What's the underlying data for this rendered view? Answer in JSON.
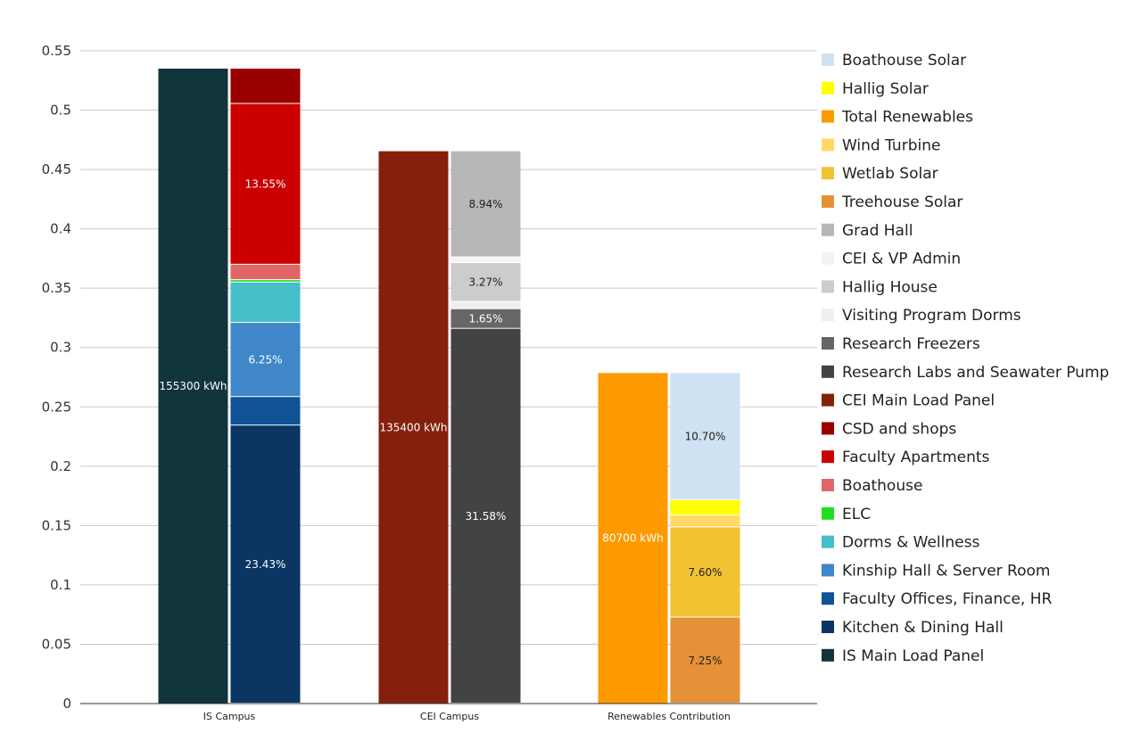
{
  "chart_data": {
    "type": "bar",
    "stacked": true,
    "title": "",
    "xlabel": "",
    "ylabel": "",
    "ylim": [
      0,
      0.55
    ],
    "yticks": [
      0,
      0.05,
      0.1,
      0.15,
      0.2,
      0.25,
      0.3,
      0.35,
      0.4,
      0.45,
      0.5,
      0.55
    ],
    "ytick_labels": [
      "0",
      "0.05",
      "0.1",
      "0.15",
      "0.2",
      "0.25",
      "0.3",
      "0.35",
      "0.4",
      "0.45",
      "0.5",
      "0.55"
    ],
    "grid": true,
    "legend_position": "right",
    "groups": [
      {
        "category": "IS Campus",
        "total": {
          "name": "IS Main Load Panel",
          "value": 0.535,
          "color": "#12343b",
          "label": "155300 kWh"
        },
        "segments": [
          {
            "name": "Kitchen & Dining Hall",
            "value": 0.2343,
            "color": "#0b3563",
            "label": "23.43%"
          },
          {
            "name": "Faculty Offices, Finance, HR",
            "value": 0.024,
            "color": "#0f5296",
            "label": ""
          },
          {
            "name": "Kinship Hall & Server Room",
            "value": 0.0625,
            "color": "#3f87c8",
            "label": "6.25%"
          },
          {
            "name": "Dorms & Wellness",
            "value": 0.034,
            "color": "#46bec8",
            "label": ""
          },
          {
            "name": "ELC",
            "value": 0.002,
            "color": "#1ee01e",
            "label": ""
          },
          {
            "name": "Boathouse",
            "value": 0.013,
            "color": "#e06666",
            "label": ""
          },
          {
            "name": "Faculty Apartments",
            "value": 0.1355,
            "color": "#cc0000",
            "label": "13.55%"
          },
          {
            "name": "CSD and shops",
            "value": 0.0297,
            "color": "#990000",
            "label": ""
          }
        ]
      },
      {
        "category": "CEI Campus",
        "total": {
          "name": "CEI Main Load Panel",
          "value": 0.4654,
          "color": "#85200c",
          "label": "135400 kWh"
        },
        "segments": [
          {
            "name": "Research Labs and Seawater Pump",
            "value": 0.3158,
            "color": "#434343",
            "label": "31.58%"
          },
          {
            "name": "Research Freezers",
            "value": 0.0165,
            "color": "#666666",
            "label": "1.65%"
          },
          {
            "name": "Visiting Program Dorms",
            "value": 0.0062,
            "color": "#efefef",
            "label": ""
          },
          {
            "name": "Hallig House",
            "value": 0.0327,
            "color": "#cccccc",
            "label": "3.27%"
          },
          {
            "name": "CEI & VP Admin",
            "value": 0.0048,
            "color": "#f3f3f3",
            "label": ""
          },
          {
            "name": "Grad Hall",
            "value": 0.0894,
            "color": "#b7b7b7",
            "label": "8.94%"
          }
        ]
      },
      {
        "category": "Renewables Contribution",
        "total": {
          "name": "Total Renewables",
          "value": 0.2785,
          "color": "#ff9900",
          "label": "80700 kWh"
        },
        "segments": [
          {
            "name": "Treehouse Solar",
            "value": 0.0725,
            "color": "#e69138",
            "label": "7.25%"
          },
          {
            "name": "Wetlab Solar",
            "value": 0.076,
            "color": "#f1c232",
            "label": "7.60%"
          },
          {
            "name": "Wind Turbine",
            "value": 0.01,
            "color": "#ffd966",
            "label": ""
          },
          {
            "name": "Hallig Solar",
            "value": 0.013,
            "color": "#ffff00",
            "label": ""
          },
          {
            "name": "Boathouse Solar",
            "value": 0.107,
            "color": "#cfe2f3",
            "label": "10.70%"
          }
        ]
      }
    ],
    "legend": [
      {
        "name": "Boathouse Solar",
        "color": "#cfe2f3"
      },
      {
        "name": "Hallig Solar",
        "color": "#ffff00"
      },
      {
        "name": "Total Renewables",
        "color": "#ff9900"
      },
      {
        "name": "Wind Turbine",
        "color": "#ffd966"
      },
      {
        "name": "Wetlab Solar",
        "color": "#f1c232"
      },
      {
        "name": "Treehouse Solar",
        "color": "#e69138"
      },
      {
        "name": "Grad Hall",
        "color": "#b7b7b7"
      },
      {
        "name": "CEI & VP Admin",
        "color": "#f3f3f3"
      },
      {
        "name": "Hallig House",
        "color": "#cccccc"
      },
      {
        "name": "Visiting Program Dorms",
        "color": "#efefef"
      },
      {
        "name": "Research Freezers",
        "color": "#666666"
      },
      {
        "name": "Research Labs and Seawater Pump",
        "color": "#434343"
      },
      {
        "name": "CEI Main Load Panel",
        "color": "#85200c"
      },
      {
        "name": "CSD and shops",
        "color": "#990000"
      },
      {
        "name": "Faculty Apartments",
        "color": "#cc0000"
      },
      {
        "name": "Boathouse",
        "color": "#e06666"
      },
      {
        "name": "ELC",
        "color": "#1ee01e"
      },
      {
        "name": "Dorms & Wellness",
        "color": "#46bec8"
      },
      {
        "name": "Kinship Hall & Server Room",
        "color": "#3f87c8"
      },
      {
        "name": "Faculty Offices, Finance, HR",
        "color": "#0f5296"
      },
      {
        "name": "Kitchen & Dining Hall",
        "color": "#0b3563"
      },
      {
        "name": "IS Main Load Panel",
        "color": "#12343b"
      }
    ]
  }
}
